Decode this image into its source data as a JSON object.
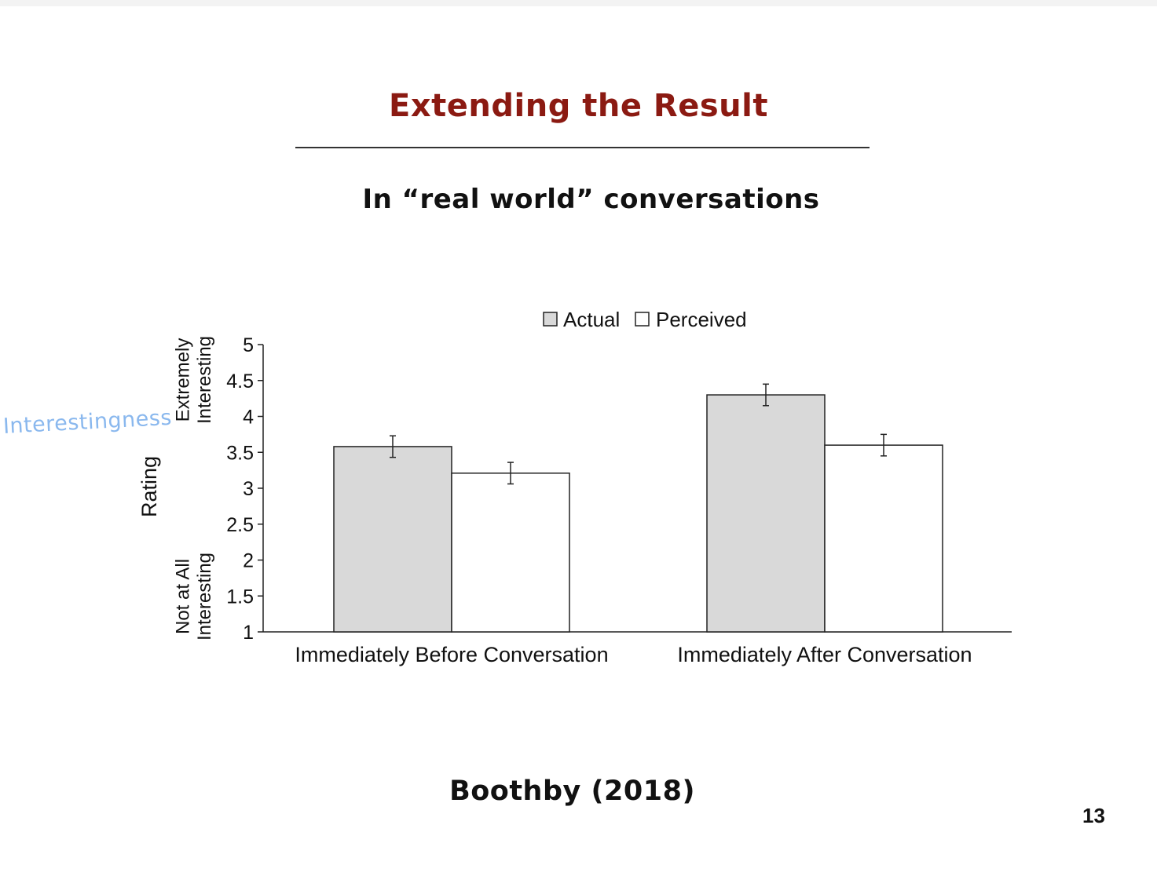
{
  "slide": {
    "title": "Extending the Result",
    "subtitle": "In “real world” conversations",
    "citation": "Boothby (2018)",
    "page_number": "13",
    "handwritten_note": "Interestingness"
  },
  "colors": {
    "title": "#8b1a12",
    "actual_fill": "#d9d9d9",
    "perceived_fill": "#ffffff",
    "handwriting": "#8ab8ee"
  },
  "chart_data": {
    "type": "bar",
    "categories": [
      "Immediately Before Conversation",
      "Immediately After Conversation"
    ],
    "series": [
      {
        "name": "Actual",
        "values": [
          3.58,
          4.3
        ],
        "error": [
          0.15,
          0.15
        ],
        "color": "#d9d9d9"
      },
      {
        "name": "Perceived",
        "values": [
          3.21,
          3.6
        ],
        "error": [
          0.15,
          0.15
        ],
        "color": "#ffffff"
      }
    ],
    "ylabel": "Rating",
    "y_anchor_top": "Extremely Interesting",
    "y_anchor_bottom": "Not at All Interesting",
    "ylim": [
      1,
      5
    ],
    "yticks": [
      "1",
      "1.5",
      "2",
      "2.5",
      "3",
      "3.5",
      "4",
      "4.5",
      "5"
    ],
    "legend": [
      "Actual",
      "Perceived"
    ],
    "legend_position": "top",
    "grid": false
  }
}
